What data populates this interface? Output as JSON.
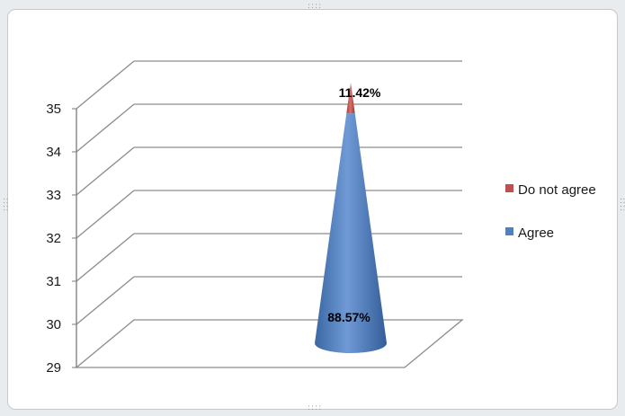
{
  "chart_data": {
    "type": "3d-cone-stacked",
    "y_axis": {
      "ticks": [
        "29",
        "30",
        "31",
        "32",
        "33",
        "34",
        "35"
      ],
      "min": 29,
      "max": 35,
      "grid": true
    },
    "categories": [
      ""
    ],
    "series": [
      {
        "name": "Agree",
        "label": "88.57%",
        "color": "#4f81bd",
        "share": 0.8857
      },
      {
        "name": "Do not agree",
        "label": "11.42%",
        "color": "#c0504d",
        "share": 0.1142
      }
    ],
    "legend": {
      "position": "right",
      "order": [
        "Do not agree",
        "Agree"
      ]
    }
  }
}
